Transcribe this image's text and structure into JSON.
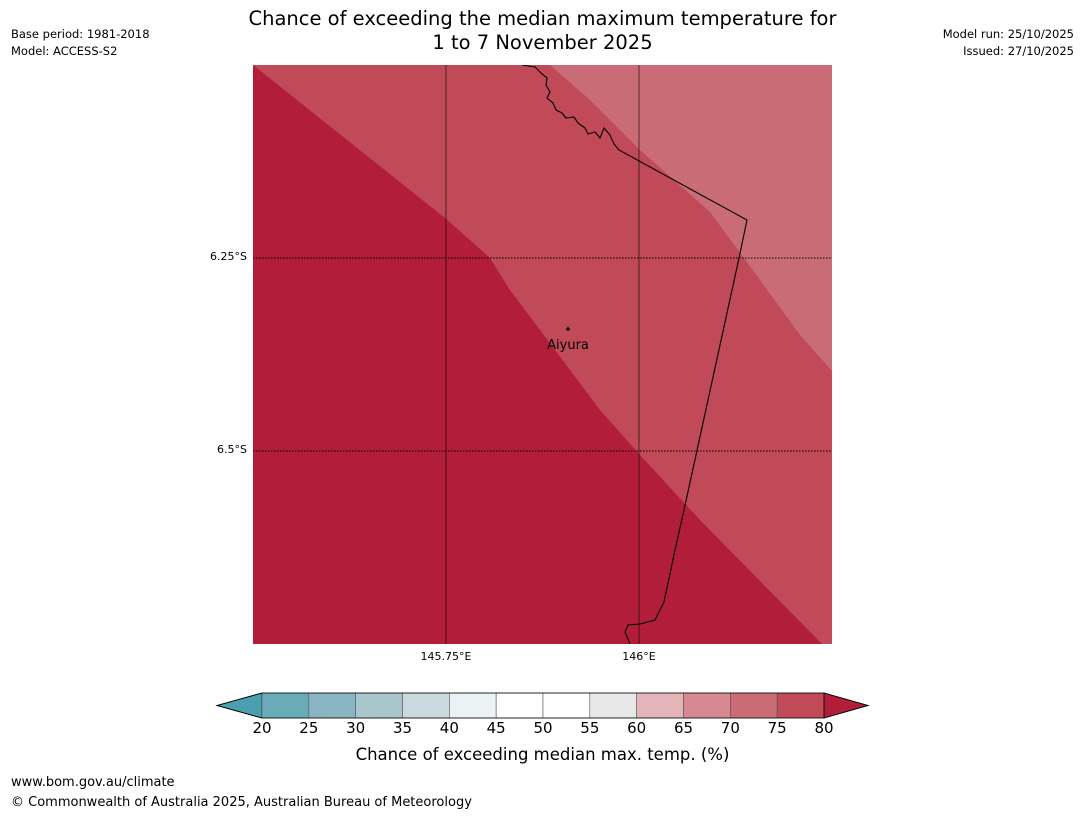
{
  "header": {
    "title_line1": "Chance of exceeding the median maximum temperature for",
    "title_line2": "1 to 7 November 2025",
    "base_period": "Base period: 1981-2018",
    "model": "Model: ACCESS-S2",
    "model_run": "Model run: 25/10/2025",
    "issued": "Issued: 27/10/2025"
  },
  "map": {
    "place_name": "Aiyura",
    "lat_labels": [
      "6.25°S",
      "6.5°S"
    ],
    "lon_labels": [
      "145.75°E",
      "146°E"
    ],
    "region_colors": {
      "above_80": "#b21e3a",
      "70_75": "#c04a57",
      "65_70": "#ca6c75"
    }
  },
  "colorbar": {
    "ticks": [
      "20",
      "25",
      "30",
      "35",
      "40",
      "45",
      "50",
      "55",
      "60",
      "65",
      "70",
      "75",
      "80"
    ],
    "colors": [
      "#6aabb9",
      "#8ab6c4",
      "#a8c6cc",
      "#c9d9dd",
      "#ebf2f4",
      "#ffffff",
      "#ffffff",
      "#e8e8e8",
      "#e3b5b9",
      "#d88892",
      "#ca6c75",
      "#c04a57"
    ],
    "under_color": "#4ba0b0",
    "over_color": "#b21e3a",
    "label": "Chance of exceeding median max. temp. (%)"
  },
  "footer": {
    "url": "www.bom.gov.au/climate",
    "copyright": "© Commonwealth of Australia 2025, Australian Bureau of Meteorology"
  }
}
